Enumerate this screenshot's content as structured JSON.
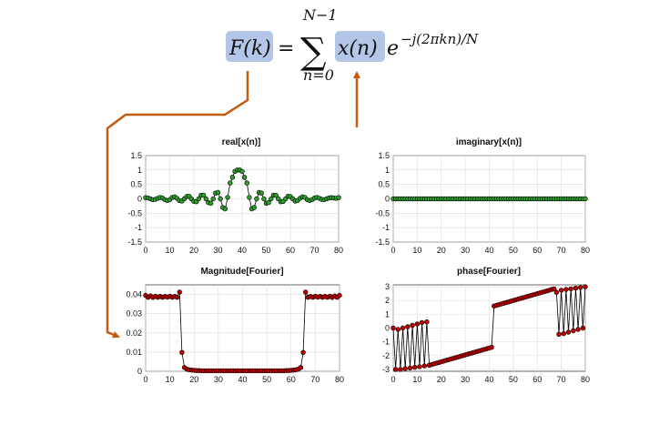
{
  "formula": {
    "lhs": "F(k)",
    "equals": "=",
    "sum_symbol": "∑",
    "upper_limit": "N−1",
    "lower_limit": "n=0",
    "term": "x(n)",
    "base": "e",
    "exponent": "−j(2πkn)/N"
  },
  "colors": {
    "highlight": "#b4c6e7",
    "arrow": "#c55a11",
    "green_marker": "#2ca02c",
    "red_marker": "#c00000",
    "line": "#000000"
  },
  "chart_data": [
    {
      "id": "real",
      "type": "line",
      "title": "real[x(n)]",
      "xlim": [
        0,
        80
      ],
      "ylim": [
        -1.5,
        1.5
      ],
      "xticks": [
        0,
        10,
        20,
        30,
        40,
        50,
        60,
        70,
        80
      ],
      "yticks": [
        1.5,
        1,
        0.5,
        0,
        -0.5,
        -1,
        -1.5
      ],
      "marker_color": "green",
      "x": [
        0,
        1,
        2,
        3,
        4,
        5,
        6,
        7,
        8,
        9,
        10,
        11,
        12,
        13,
        14,
        15,
        16,
        17,
        18,
        19,
        20,
        21,
        22,
        23,
        24,
        25,
        26,
        27,
        28,
        29,
        30,
        31,
        32,
        33,
        34,
        35,
        36,
        37,
        38,
        39,
        40,
        41,
        42,
        43,
        44,
        45,
        46,
        47,
        48,
        49,
        50,
        51,
        52,
        53,
        54,
        55,
        56,
        57,
        58,
        59,
        60,
        61,
        62,
        63,
        64,
        65,
        66,
        67,
        68,
        69,
        70,
        71,
        72,
        73,
        74,
        75,
        76,
        77,
        78,
        79,
        80
      ],
      "y": [
        0.04,
        0.03,
        0.0,
        -0.03,
        -0.02,
        0.02,
        0.05,
        0.03,
        -0.03,
        -0.06,
        -0.03,
        0.05,
        0.07,
        0.02,
        -0.06,
        -0.08,
        0.0,
        0.08,
        0.09,
        0.0,
        -0.09,
        -0.1,
        0.0,
        0.12,
        0.13,
        0.0,
        -0.13,
        -0.15,
        0.0,
        0.2,
        0.22,
        0.0,
        -0.3,
        -0.35,
        0.05,
        0.55,
        0.75,
        0.95,
        1.0,
        1.0,
        0.95,
        0.75,
        0.55,
        0.05,
        -0.35,
        -0.3,
        0.0,
        0.22,
        0.2,
        0.0,
        -0.15,
        -0.13,
        0.0,
        0.13,
        0.12,
        0.0,
        -0.1,
        -0.09,
        0.0,
        0.09,
        0.08,
        0.0,
        -0.08,
        -0.06,
        0.02,
        0.07,
        0.05,
        -0.03,
        -0.06,
        -0.03,
        0.03,
        0.05,
        0.02,
        -0.02,
        -0.03,
        0.0,
        0.03,
        0.04,
        0.03,
        0.02,
        0.04
      ]
    },
    {
      "id": "imag",
      "type": "line",
      "title": "imaginary[x(n)]",
      "xlim": [
        0,
        80
      ],
      "ylim": [
        -1.5,
        1.5
      ],
      "xticks": [
        0,
        10,
        20,
        30,
        40,
        50,
        60,
        70,
        80
      ],
      "yticks": [
        1.5,
        1,
        0.5,
        0,
        -0.5,
        -1,
        -1.5
      ],
      "marker_color": "green",
      "x": [
        0,
        1,
        2,
        3,
        4,
        5,
        6,
        7,
        8,
        9,
        10,
        11,
        12,
        13,
        14,
        15,
        16,
        17,
        18,
        19,
        20,
        21,
        22,
        23,
        24,
        25,
        26,
        27,
        28,
        29,
        30,
        31,
        32,
        33,
        34,
        35,
        36,
        37,
        38,
        39,
        40,
        41,
        42,
        43,
        44,
        45,
        46,
        47,
        48,
        49,
        50,
        51,
        52,
        53,
        54,
        55,
        56,
        57,
        58,
        59,
        60,
        61,
        62,
        63,
        64,
        65,
        66,
        67,
        68,
        69,
        70,
        71,
        72,
        73,
        74,
        75,
        76,
        77,
        78,
        79,
        80
      ],
      "y": [
        0,
        0,
        0,
        0,
        0,
        0,
        0,
        0,
        0,
        0,
        0,
        0,
        0,
        0,
        0,
        0,
        0,
        0,
        0,
        0,
        0,
        0,
        0,
        0,
        0,
        0,
        0,
        0,
        0,
        0,
        0,
        0,
        0,
        0,
        0,
        0,
        0,
        0,
        0,
        0,
        0,
        0,
        0,
        0,
        0,
        0,
        0,
        0,
        0,
        0,
        0,
        0,
        0,
        0,
        0,
        0,
        0,
        0,
        0,
        0,
        0,
        0,
        0,
        0,
        0,
        0,
        0,
        0,
        0,
        0,
        0,
        0,
        0,
        0,
        0,
        0,
        0,
        0,
        0,
        0,
        0
      ]
    },
    {
      "id": "mag",
      "type": "line",
      "title": "Magnitude[Fourier]",
      "xlim": [
        0,
        80
      ],
      "ylim": [
        0,
        0.045
      ],
      "xticks": [
        0,
        10,
        20,
        30,
        40,
        50,
        60,
        70,
        80
      ],
      "yticks": [
        0.04,
        0.03,
        0.02,
        0.01,
        0
      ],
      "marker_color": "red",
      "x": [
        0,
        1,
        2,
        3,
        4,
        5,
        6,
        7,
        8,
        9,
        10,
        11,
        12,
        13,
        14,
        15,
        16,
        17,
        18,
        19,
        20,
        21,
        22,
        23,
        24,
        25,
        26,
        27,
        28,
        29,
        30,
        31,
        32,
        33,
        34,
        35,
        36,
        37,
        38,
        39,
        40,
        41,
        42,
        43,
        44,
        45,
        46,
        47,
        48,
        49,
        50,
        51,
        52,
        53,
        54,
        55,
        56,
        57,
        58,
        59,
        60,
        61,
        62,
        63,
        64,
        65,
        66,
        67,
        68,
        69,
        70,
        71,
        72,
        73,
        74,
        75,
        76,
        77,
        78,
        79,
        80
      ],
      "y": [
        0.0395,
        0.0385,
        0.0392,
        0.0384,
        0.0391,
        0.0385,
        0.039,
        0.0385,
        0.039,
        0.0386,
        0.0391,
        0.0385,
        0.039,
        0.0385,
        0.0412,
        0.0098,
        0.002,
        0.0011,
        0.0008,
        0.0006,
        0.0005,
        0.0004,
        0.0004,
        0.0003,
        0.0003,
        0.0003,
        0.0003,
        0.0003,
        0.0003,
        0.0003,
        0.0003,
        0.0003,
        0.0003,
        0.0003,
        0.0003,
        0.0003,
        0.0003,
        0.0003,
        0.0003,
        0.0003,
        0.0003,
        0.0003,
        0.0003,
        0.0003,
        0.0003,
        0.0003,
        0.0003,
        0.0003,
        0.0003,
        0.0003,
        0.0003,
        0.0003,
        0.0003,
        0.0003,
        0.0003,
        0.0003,
        0.0003,
        0.0003,
        0.0004,
        0.0004,
        0.0005,
        0.0006,
        0.0008,
        0.0011,
        0.002,
        0.0098,
        0.0412,
        0.0385,
        0.039,
        0.0385,
        0.0391,
        0.0386,
        0.039,
        0.0385,
        0.039,
        0.0385,
        0.0391,
        0.0384,
        0.0392,
        0.0385,
        0.0395
      ]
    },
    {
      "id": "phase",
      "type": "line",
      "title": "phase[Fourier]",
      "xlim": [
        0,
        80
      ],
      "ylim": [
        -3.14,
        3.14
      ],
      "xticks": [
        0,
        10,
        20,
        30,
        40,
        50,
        60,
        70,
        80
      ],
      "yticks": [
        3,
        2,
        1,
        0,
        -1,
        -2,
        -3
      ],
      "marker_color": "red",
      "x": [
        0,
        1,
        2,
        3,
        4,
        5,
        6,
        7,
        8,
        9,
        10,
        11,
        12,
        13,
        14,
        15,
        16,
        17,
        18,
        19,
        20,
        21,
        22,
        23,
        24,
        25,
        26,
        27,
        28,
        29,
        30,
        31,
        32,
        33,
        34,
        35,
        36,
        37,
        38,
        39,
        40,
        41,
        42,
        43,
        44,
        45,
        46,
        47,
        48,
        49,
        50,
        51,
        52,
        53,
        54,
        55,
        56,
        57,
        58,
        59,
        60,
        61,
        62,
        63,
        64,
        65,
        66,
        67,
        68,
        69,
        70,
        71,
        72,
        73,
        74,
        75,
        76,
        77,
        78,
        79,
        80
      ],
      "y": [
        0,
        -3.0,
        -0.1,
        -3.0,
        0.0,
        -2.95,
        0.1,
        -2.9,
        0.2,
        -2.85,
        0.3,
        -2.8,
        0.4,
        -2.75,
        0.45,
        -2.7,
        -2.65,
        -2.6,
        -2.55,
        -2.5,
        -2.45,
        -2.4,
        -2.35,
        -2.3,
        -2.25,
        -2.2,
        -2.15,
        -2.1,
        -2.05,
        -2.0,
        -1.95,
        -1.9,
        -1.85,
        -1.8,
        -1.75,
        -1.7,
        -1.65,
        -1.6,
        -1.55,
        -1.5,
        -1.45,
        -1.4,
        1.6,
        1.65,
        1.7,
        1.75,
        1.8,
        1.85,
        1.9,
        1.95,
        2.0,
        2.05,
        2.1,
        2.15,
        2.2,
        2.25,
        2.3,
        2.35,
        2.4,
        2.45,
        2.5,
        2.55,
        2.6,
        2.65,
        2.7,
        2.75,
        2.8,
        2.85,
        2.6,
        -0.45,
        2.75,
        -0.4,
        2.8,
        -0.3,
        2.85,
        -0.2,
        2.9,
        -0.1,
        2.95,
        0.0,
        3.0
      ]
    }
  ]
}
